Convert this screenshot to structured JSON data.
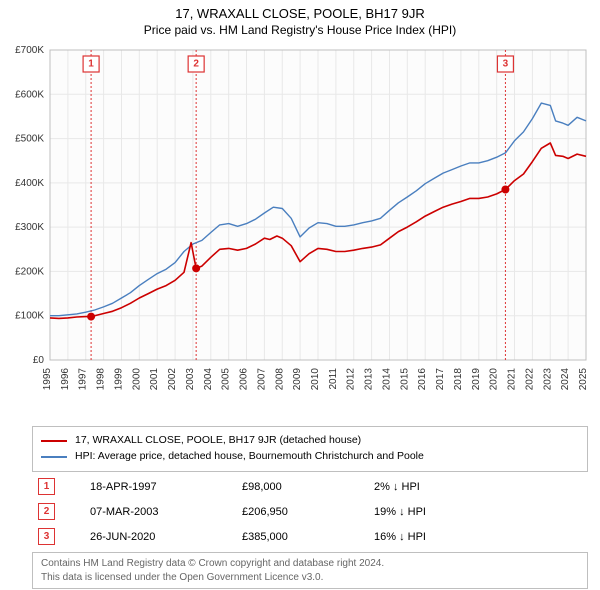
{
  "title": "17, WRAXALL CLOSE, POOLE, BH17 9JR",
  "subtitle": "Price paid vs. HM Land Registry's House Price Index (HPI)",
  "chart": {
    "type": "line",
    "background_color": "#ffffff",
    "plot_background_color": "#fcfcfc",
    "grid_color": "#e8e8e8",
    "border_color": "#bfbfbf",
    "label_fontsize": 10,
    "x": {
      "min": 1995,
      "max": 2025,
      "tick_step": 1
    },
    "y": {
      "min": 0,
      "max": 700000,
      "tick_step": 100000,
      "label_prefix": "£",
      "label_suffix": "K",
      "label_divisor": 1000
    },
    "series": [
      {
        "name": "property",
        "label": "17, WRAXALL CLOSE, POOLE, BH17 9JR (detached house)",
        "color": "#cc0000",
        "line_width": 1.6,
        "points": [
          [
            1995,
            95000
          ],
          [
            1995.5,
            94000
          ],
          [
            1996,
            95000
          ],
          [
            1996.5,
            97000
          ],
          [
            1997,
            98000
          ],
          [
            1997.3,
            98000
          ],
          [
            1998,
            105000
          ],
          [
            1998.5,
            110000
          ],
          [
            1999,
            118000
          ],
          [
            1999.5,
            128000
          ],
          [
            2000,
            140000
          ],
          [
            2000.5,
            150000
          ],
          [
            2001,
            160000
          ],
          [
            2001.5,
            168000
          ],
          [
            2002,
            180000
          ],
          [
            2002.5,
            198000
          ],
          [
            2002.9,
            265000
          ],
          [
            2003.18,
            206950
          ],
          [
            2003.5,
            212000
          ],
          [
            2004,
            232000
          ],
          [
            2004.5,
            250000
          ],
          [
            2005,
            252000
          ],
          [
            2005.5,
            248000
          ],
          [
            2006,
            252000
          ],
          [
            2006.5,
            262000
          ],
          [
            2007,
            275000
          ],
          [
            2007.3,
            272000
          ],
          [
            2007.7,
            280000
          ],
          [
            2008,
            275000
          ],
          [
            2008.5,
            258000
          ],
          [
            2009,
            222000
          ],
          [
            2009.5,
            240000
          ],
          [
            2010,
            252000
          ],
          [
            2010.5,
            250000
          ],
          [
            2011,
            245000
          ],
          [
            2011.5,
            245000
          ],
          [
            2012,
            248000
          ],
          [
            2012.5,
            252000
          ],
          [
            2013,
            255000
          ],
          [
            2013.5,
            260000
          ],
          [
            2014,
            275000
          ],
          [
            2014.5,
            290000
          ],
          [
            2015,
            300000
          ],
          [
            2015.5,
            312000
          ],
          [
            2016,
            325000
          ],
          [
            2016.5,
            335000
          ],
          [
            2017,
            345000
          ],
          [
            2017.5,
            352000
          ],
          [
            2018,
            358000
          ],
          [
            2018.5,
            365000
          ],
          [
            2019,
            365000
          ],
          [
            2019.5,
            368000
          ],
          [
            2020,
            375000
          ],
          [
            2020.49,
            385000
          ],
          [
            2021,
            405000
          ],
          [
            2021.5,
            420000
          ],
          [
            2022,
            448000
          ],
          [
            2022.5,
            478000
          ],
          [
            2023,
            490000
          ],
          [
            2023.3,
            462000
          ],
          [
            2023.7,
            460000
          ],
          [
            2024,
            455000
          ],
          [
            2024.5,
            465000
          ],
          [
            2025,
            460000
          ]
        ]
      },
      {
        "name": "hpi",
        "label": "HPI: Average price, detached house, Bournemouth Christchurch and Poole",
        "color": "#4a7fbf",
        "line_width": 1.4,
        "points": [
          [
            1995,
            100000
          ],
          [
            1995.5,
            100000
          ],
          [
            1996,
            102000
          ],
          [
            1996.5,
            104000
          ],
          [
            1997,
            108000
          ],
          [
            1997.5,
            113000
          ],
          [
            1998,
            120000
          ],
          [
            1998.5,
            128000
          ],
          [
            1999,
            140000
          ],
          [
            1999.5,
            152000
          ],
          [
            2000,
            168000
          ],
          [
            2000.5,
            182000
          ],
          [
            2001,
            195000
          ],
          [
            2001.5,
            205000
          ],
          [
            2002,
            220000
          ],
          [
            2002.5,
            245000
          ],
          [
            2003,
            262000
          ],
          [
            2003.5,
            270000
          ],
          [
            2004,
            288000
          ],
          [
            2004.5,
            305000
          ],
          [
            2005,
            308000
          ],
          [
            2005.5,
            302000
          ],
          [
            2006,
            308000
          ],
          [
            2006.5,
            318000
          ],
          [
            2007,
            332000
          ],
          [
            2007.5,
            345000
          ],
          [
            2008,
            342000
          ],
          [
            2008.5,
            320000
          ],
          [
            2009,
            278000
          ],
          [
            2009.5,
            298000
          ],
          [
            2010,
            310000
          ],
          [
            2010.5,
            308000
          ],
          [
            2011,
            302000
          ],
          [
            2011.5,
            302000
          ],
          [
            2012,
            305000
          ],
          [
            2012.5,
            310000
          ],
          [
            2013,
            314000
          ],
          [
            2013.5,
            320000
          ],
          [
            2014,
            338000
          ],
          [
            2014.5,
            355000
          ],
          [
            2015,
            368000
          ],
          [
            2015.5,
            382000
          ],
          [
            2016,
            398000
          ],
          [
            2016.5,
            410000
          ],
          [
            2017,
            422000
          ],
          [
            2017.5,
            430000
          ],
          [
            2018,
            438000
          ],
          [
            2018.5,
            445000
          ],
          [
            2019,
            445000
          ],
          [
            2019.5,
            450000
          ],
          [
            2020,
            458000
          ],
          [
            2020.5,
            468000
          ],
          [
            2021,
            495000
          ],
          [
            2021.5,
            515000
          ],
          [
            2022,
            545000
          ],
          [
            2022.5,
            580000
          ],
          [
            2023,
            575000
          ],
          [
            2023.3,
            540000
          ],
          [
            2023.7,
            535000
          ],
          [
            2024,
            530000
          ],
          [
            2024.5,
            548000
          ],
          [
            2025,
            540000
          ]
        ]
      }
    ],
    "sale_markers": [
      {
        "n": "1",
        "year": 1997.3,
        "price": 98000
      },
      {
        "n": "2",
        "year": 2003.18,
        "price": 206950
      },
      {
        "n": "3",
        "year": 2020.49,
        "price": 385000
      }
    ],
    "marker_color": "#cc0000",
    "marker_dot_radius": 4
  },
  "legend": {
    "items": [
      {
        "color": "#cc0000",
        "text": "17, WRAXALL CLOSE, POOLE, BH17 9JR (detached house)"
      },
      {
        "color": "#4a7fbf",
        "text": "HPI: Average price, detached house, Bournemouth Christchurch and Poole"
      }
    ]
  },
  "transactions": [
    {
      "n": "1",
      "date": "18-APR-1997",
      "price": "£98,000",
      "delta_pct": "2%",
      "delta_dir": "down",
      "delta_label": "HPI"
    },
    {
      "n": "2",
      "date": "07-MAR-2003",
      "price": "£206,950",
      "delta_pct": "19%",
      "delta_dir": "down",
      "delta_label": "HPI"
    },
    {
      "n": "3",
      "date": "26-JUN-2020",
      "price": "£385,000",
      "delta_pct": "16%",
      "delta_dir": "down",
      "delta_label": "HPI"
    }
  ],
  "footer": {
    "line1": "Contains HM Land Registry data © Crown copyright and database right 2024.",
    "line2": "This data is licensed under the Open Government Licence v3.0."
  }
}
